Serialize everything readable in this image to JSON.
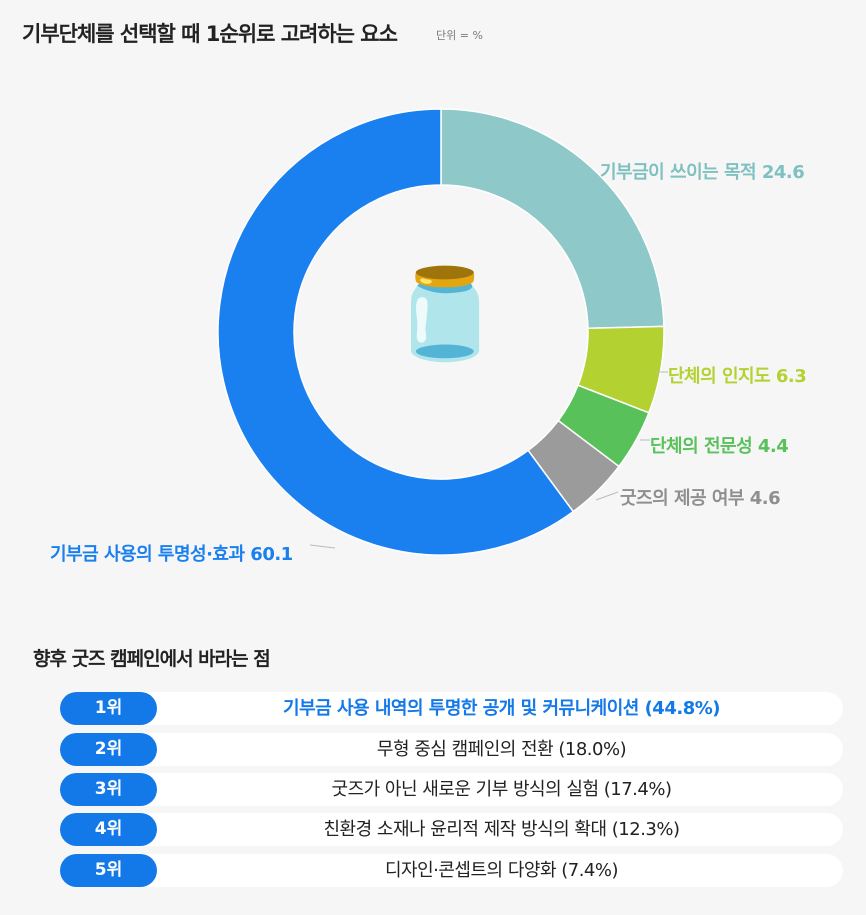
{
  "chart_data": {
    "type": "pie",
    "title": "기부단체를 선택할 때 1순위로 고려하는 요소",
    "unit_note": "단위 = %",
    "slices": [
      {
        "label": "기부금이 쓰이는 목적",
        "value": 24.6,
        "color": "#8ec8c8"
      },
      {
        "label": "단체의 인지도",
        "value": 6.3,
        "color": "#b3d232"
      },
      {
        "label": "단체의 전문성",
        "value": 4.4,
        "color": "#58c15a"
      },
      {
        "label": "굿즈의 제공 여부",
        "value": 4.6,
        "color": "#9b9b9b"
      },
      {
        "label": "기부금 사용의 투명성·효과",
        "value": 60.1,
        "color": "#1a80f0"
      }
    ]
  },
  "center_icon": "jar-with-hands-icon",
  "ranking": {
    "title": "향후 굿즈 캠페인에서 바라는 점",
    "items": [
      {
        "rank": "1위",
        "text": "기부금 사용 내역의 투명한 공개 및 커뮤니케이션 (44.8%)"
      },
      {
        "rank": "2위",
        "text": "무형 중심 캠페인의 전환 (18.0%)"
      },
      {
        "rank": "3위",
        "text": "굿즈가 아닌 새로운 기부 방식의 실험 (17.4%)"
      },
      {
        "rank": "4위",
        "text": "친환경 소재나 윤리적 제작 방식의 확대 (12.3%)"
      },
      {
        "rank": "5위",
        "text": "디자인·콘셉트의 다양화 (7.4%)"
      }
    ]
  }
}
